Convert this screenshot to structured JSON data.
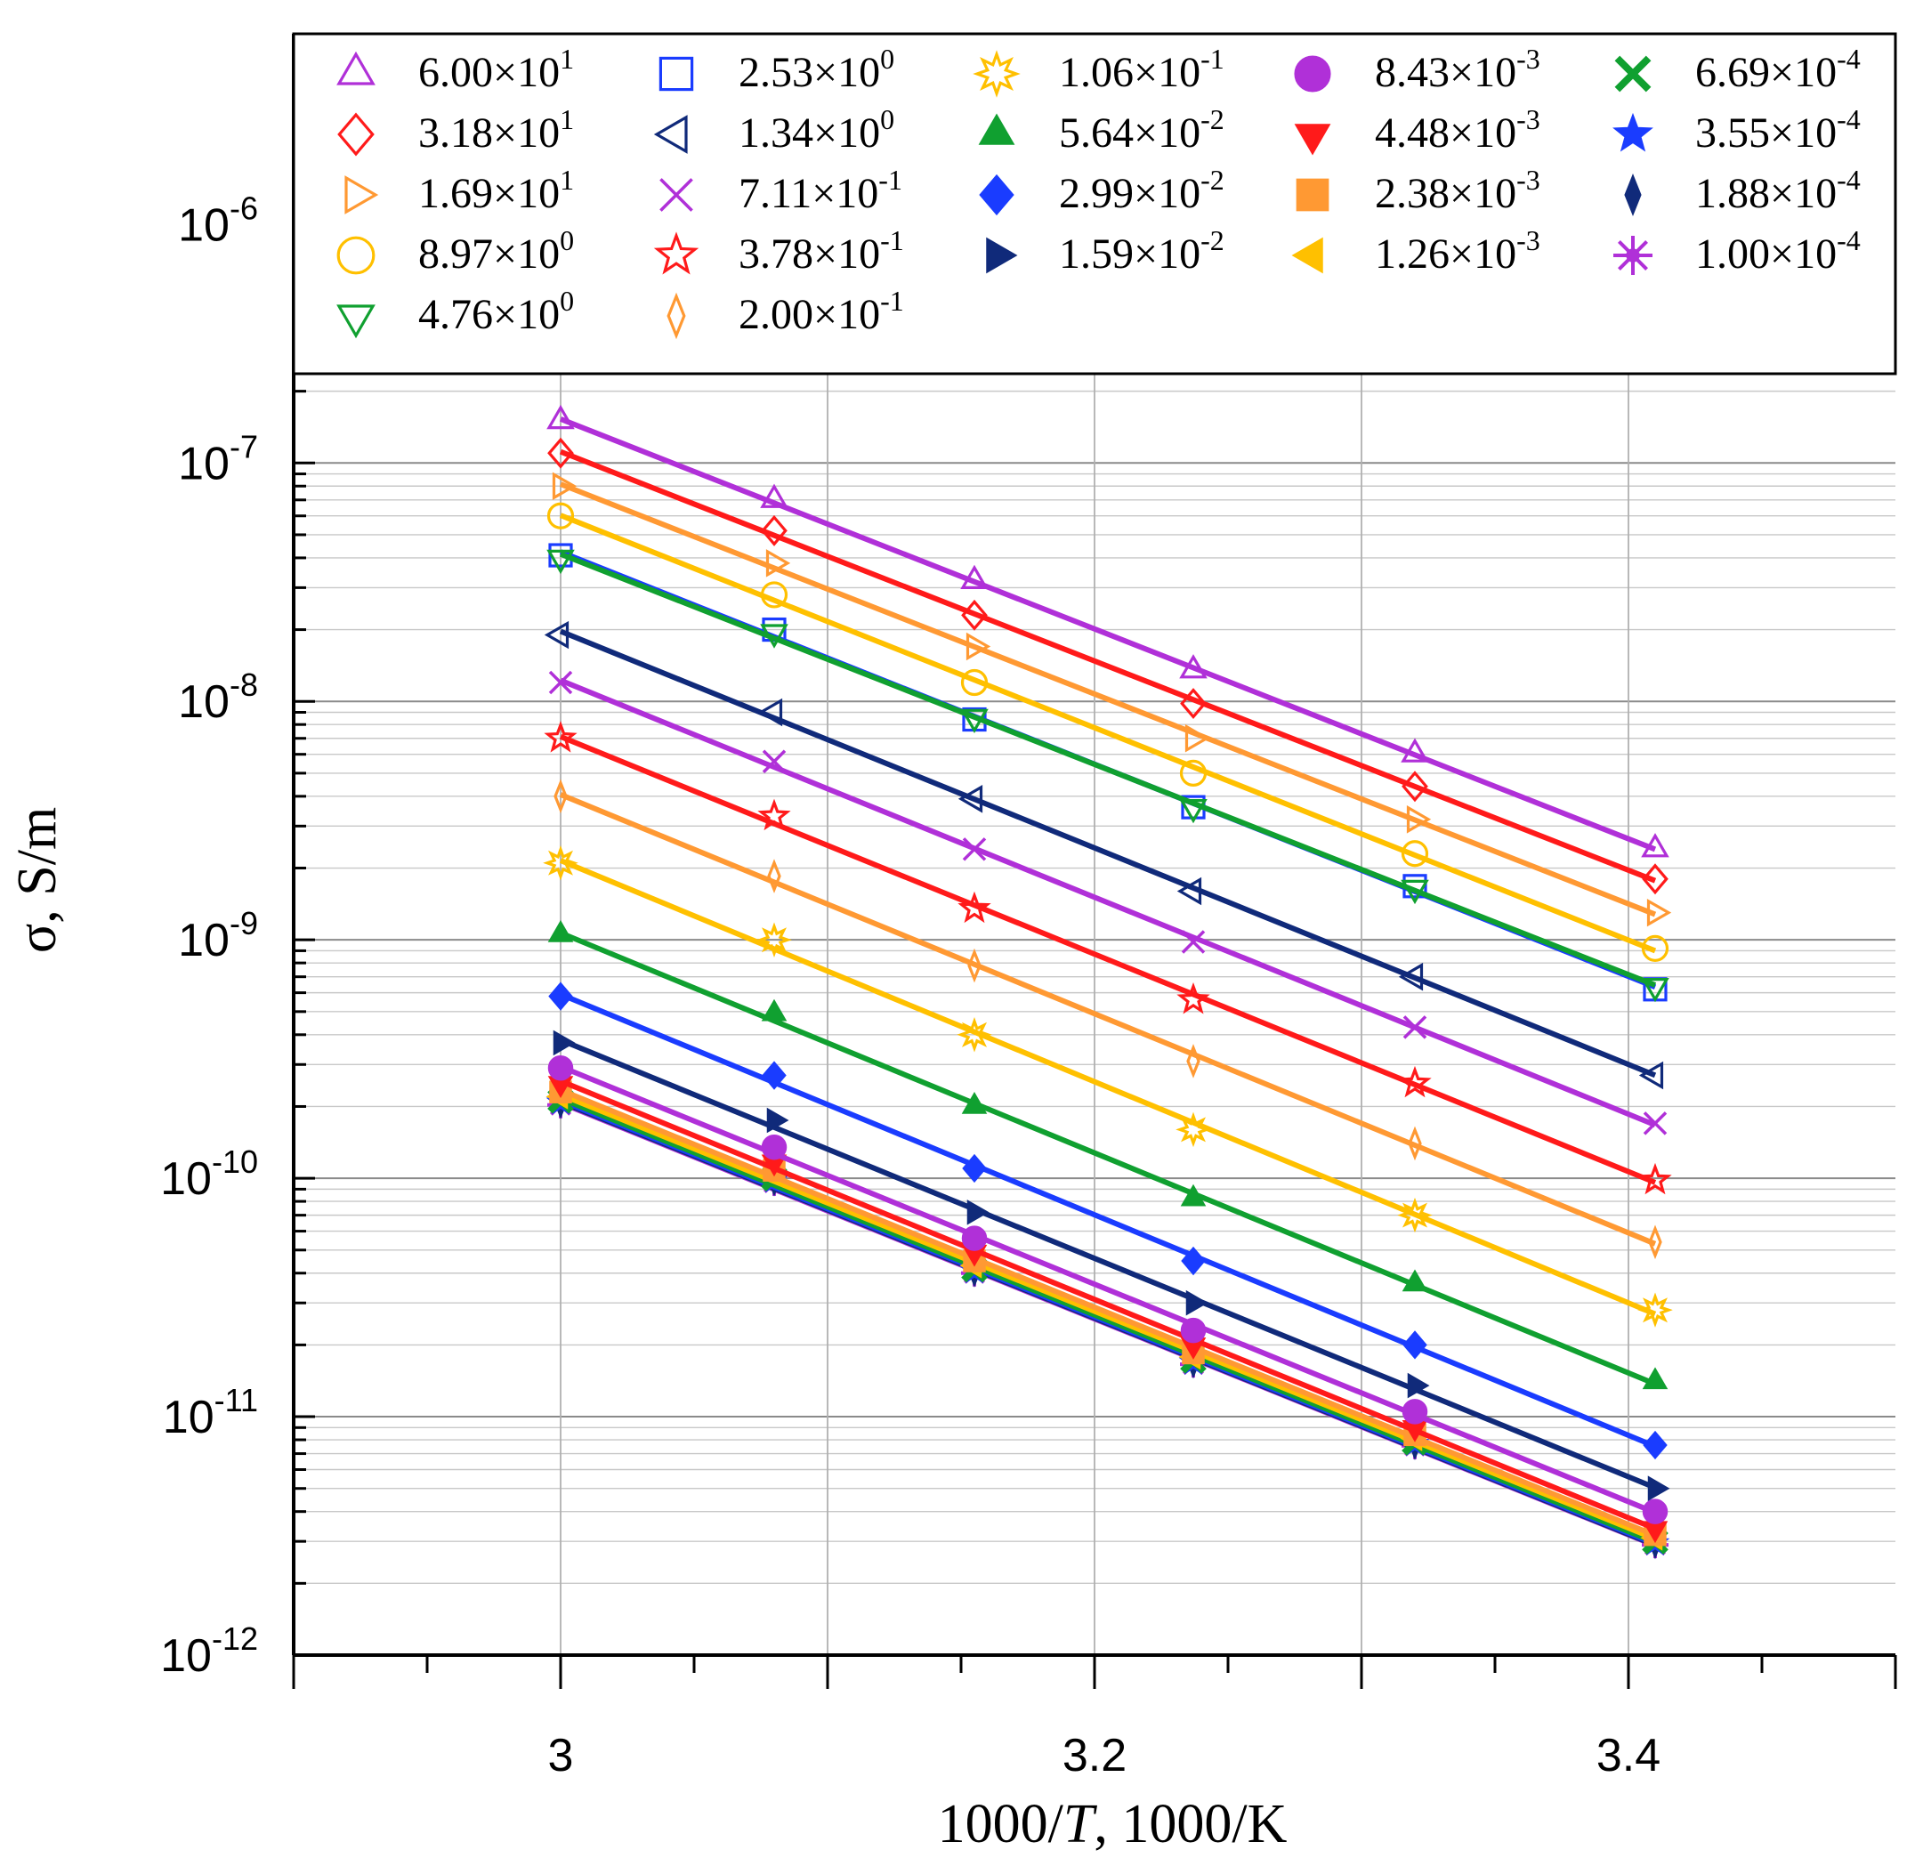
{
  "chart_data": {
    "type": "scatter",
    "title": "",
    "xlabel_prefix": "1000/",
    "xlabel_var": "T",
    "xlabel_suffix": ", 1000/K",
    "ylabel": "σ, S/m",
    "xlim": [
      2.9,
      3.5
    ],
    "ylim_log10": [
      -12,
      -5.2
    ],
    "x_ticks": [
      3.0,
      3.2,
      3.4
    ],
    "x_tick_labels": [
      "3",
      "3.2",
      "3.4"
    ],
    "y_ticks": [
      {
        "mant": "10",
        "exp": "-12",
        "value": -12
      },
      {
        "mant": "10",
        "exp": "-11",
        "value": -11
      },
      {
        "mant": "10",
        "exp": "-10",
        "value": -10
      },
      {
        "mant": "10",
        "exp": "-9",
        "value": -9
      },
      {
        "mant": "10",
        "exp": "-8",
        "value": -8
      },
      {
        "mant": "10",
        "exp": "-7",
        "value": -7
      },
      {
        "mant": "10",
        "exp": "-6",
        "value": -6
      }
    ],
    "grid": true,
    "legend_position": "top",
    "x": [
      3.0,
      3.08,
      3.155,
      3.237,
      3.32,
      3.41
    ],
    "series": [
      {
        "name": "6.00×10¹",
        "mant": "6.00",
        "exp": "1",
        "color": "#b030d8",
        "marker": "triangle-up-open",
        "y": [
          1.5e-07,
          7e-08,
          3.2e-08,
          1.35e-08,
          6e-09,
          2.4e-09
        ]
      },
      {
        "name": "3.18×10¹",
        "mant": "3.18",
        "exp": "1",
        "color": "#ff1a1a",
        "marker": "diamond-open",
        "y": [
          1.1e-07,
          5.2e-08,
          2.3e-08,
          9.8e-09,
          4.4e-09,
          1.8e-09
        ]
      },
      {
        "name": "1.69×10¹",
        "mant": "1.69",
        "exp": "1",
        "color": "#ff9933",
        "marker": "triangle-right-open",
        "y": [
          8e-08,
          3.8e-08,
          1.7e-08,
          7e-09,
          3.2e-09,
          1.3e-09
        ]
      },
      {
        "name": "8.97×10⁰",
        "mant": "8.97",
        "exp": "0",
        "color": "#ffc000",
        "marker": "circle-open",
        "y": [
          6e-08,
          2.8e-08,
          1.2e-08,
          5e-09,
          2.3e-09,
          9.2e-10
        ]
      },
      {
        "name": "4.76×10⁰",
        "mant": "4.76",
        "exp": "0",
        "color": "#10a030",
        "marker": "triangle-down-open",
        "y": [
          4e-08,
          1.95e-08,
          8.6e-09,
          3.6e-09,
          1.65e-09,
          6.4e-10
        ]
      },
      {
        "name": "2.53×10⁰",
        "mant": "2.53",
        "exp": "0",
        "color": "#1a3cff",
        "marker": "square-open",
        "y": [
          4.1e-08,
          2e-08,
          8.4e-09,
          3.6e-09,
          1.68e-09,
          6.2e-10
        ]
      },
      {
        "name": "1.34×10⁰",
        "mant": "1.34",
        "exp": "0",
        "color": "#102a7a",
        "marker": "triangle-left-open",
        "y": [
          1.9e-08,
          9e-09,
          3.9e-09,
          1.6e-09,
          7e-10,
          2.7e-10
        ]
      },
      {
        "name": "7.11×10⁻¹",
        "mant": "7.11",
        "exp": "-1",
        "color": "#b030d8",
        "marker": "x",
        "y": [
          1.2e-08,
          5.6e-09,
          2.4e-09,
          9.8e-10,
          4.3e-10,
          1.7e-10
        ]
      },
      {
        "name": "3.78×10⁻¹",
        "mant": "3.78",
        "exp": "-1",
        "color": "#ff1a1a",
        "marker": "star-open",
        "y": [
          7e-09,
          3.3e-09,
          1.35e-09,
          5.6e-10,
          2.5e-10,
          9.8e-11
        ]
      },
      {
        "name": "2.00×10⁻¹",
        "mant": "2.00",
        "exp": "-1",
        "color": "#ff9933",
        "marker": "thin-diamond",
        "y": [
          4e-09,
          1.85e-09,
          7.8e-10,
          3.1e-10,
          1.4e-10,
          5.4e-11
        ]
      },
      {
        "name": "1.06×10⁻¹",
        "mant": "1.06",
        "exp": "-1",
        "color": "#ffc000",
        "marker": "star8-open",
        "y": [
          2.1e-09,
          1e-09,
          4e-10,
          1.6e-10,
          7e-11,
          2.8e-11
        ]
      },
      {
        "name": "5.64×10⁻²",
        "mant": "5.64",
        "exp": "-2",
        "color": "#10a030",
        "marker": "triangle-up-filled",
        "y": [
          1.05e-09,
          4.9e-10,
          2e-10,
          8.2e-11,
          3.6e-11,
          1.4e-11
        ]
      },
      {
        "name": "2.99×10⁻²",
        "mant": "2.99",
        "exp": "-2",
        "color": "#1a3cff",
        "marker": "diamond-filled",
        "y": [
          5.8e-10,
          2.7e-10,
          1.1e-10,
          4.5e-11,
          2e-11,
          7.6e-12
        ]
      },
      {
        "name": "1.59×10⁻²",
        "mant": "1.59",
        "exp": "-2",
        "color": "#102a7a",
        "marker": "triangle-right-filled",
        "y": [
          3.7e-10,
          1.75e-10,
          7.2e-11,
          3e-11,
          1.35e-11,
          5e-12
        ]
      },
      {
        "name": "8.43×10⁻³",
        "mant": "8.43",
        "exp": "-3",
        "color": "#b030d8",
        "marker": "circle-filled",
        "y": [
          2.9e-10,
          1.35e-10,
          5.6e-11,
          2.3e-11,
          1.05e-11,
          4e-12
        ]
      },
      {
        "name": "4.48×10⁻³",
        "mant": "4.48",
        "exp": "-3",
        "color": "#ff1a1a",
        "marker": "triangle-down-filled",
        "y": [
          2.5e-10,
          1.17e-10,
          4.9e-11,
          2e-11,
          9e-12,
          3.4e-12
        ]
      },
      {
        "name": "2.38×10⁻³",
        "mant": "2.38",
        "exp": "-3",
        "color": "#ff9933",
        "marker": "square-filled",
        "y": [
          2.3e-10,
          1.08e-10,
          4.5e-11,
          1.85e-11,
          8.4e-12,
          3.2e-12
        ]
      },
      {
        "name": "1.26×10⁻³",
        "mant": "1.26",
        "exp": "-3",
        "color": "#ffc000",
        "marker": "triangle-left-filled",
        "y": [
          2.2e-10,
          1.04e-10,
          4.3e-11,
          1.78e-11,
          8.1e-12,
          3.1e-12
        ]
      },
      {
        "name": "6.69×10⁻⁴",
        "mant": "6.69",
        "exp": "-4",
        "color": "#10a030",
        "marker": "x-bold",
        "y": [
          2.12e-10,
          1e-10,
          4.15e-11,
          1.72e-11,
          7.8e-12,
          3e-12
        ]
      },
      {
        "name": "3.55×10⁻⁴",
        "mant": "3.55",
        "exp": "-4",
        "color": "#1a3cff",
        "marker": "star-filled",
        "y": [
          2.08e-10,
          9.8e-11,
          4.08e-11,
          1.69e-11,
          7.7e-12,
          2.95e-12
        ]
      },
      {
        "name": "1.88×10⁻⁴",
        "mant": "1.88",
        "exp": "-4",
        "color": "#102a7a",
        "marker": "thin-diamond-filled",
        "y": [
          2.05e-10,
          9.7e-11,
          4.03e-11,
          1.67e-11,
          7.6e-12,
          2.92e-12
        ]
      },
      {
        "name": "1.00×10⁻⁴",
        "mant": "1.00",
        "exp": "-4",
        "color": "#b030d8",
        "marker": "asterisk",
        "y": [
          2.03e-10,
          9.6e-11,
          4e-11,
          1.66e-11,
          7.55e-12,
          2.9e-12
        ]
      }
    ]
  }
}
